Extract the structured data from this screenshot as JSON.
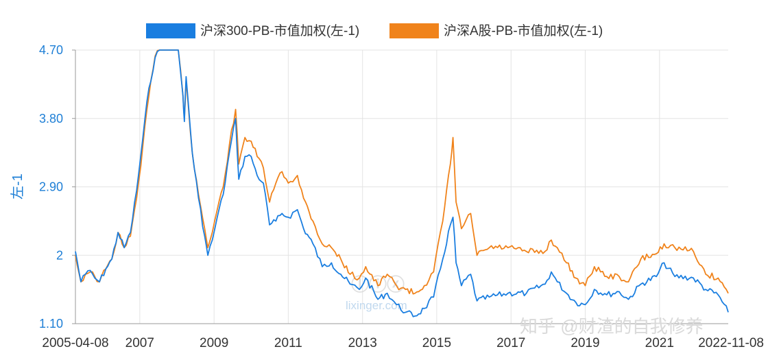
{
  "chart_data": {
    "type": "line",
    "ylabel": "左-1",
    "ylim": [
      1.1,
      4.7
    ],
    "y_ticks": [
      "4.70",
      "3.80",
      "2.90",
      "2",
      "1.10"
    ],
    "x_ticks": [
      "2005-04-08",
      "2007",
      "2009",
      "2011",
      "2013",
      "2015",
      "2017",
      "2019",
      "2021",
      "2022-11-08"
    ],
    "x_start": "2005-04-08",
    "x_end": "2022-11-08",
    "grid": true,
    "legend_position": "top",
    "series": [
      {
        "name": "沪深300-PB-市值加权(左-1)",
        "color": "#1a7ee0",
        "points": [
          [
            "2005-04-08",
            2.05
          ],
          [
            "2005-06-01",
            1.65
          ],
          [
            "2005-07-15",
            1.75
          ],
          [
            "2005-09-01",
            1.8
          ],
          [
            "2005-10-15",
            1.7
          ],
          [
            "2005-12-01",
            1.65
          ],
          [
            "2006-02-01",
            1.82
          ],
          [
            "2006-04-01",
            1.95
          ],
          [
            "2006-06-01",
            2.3
          ],
          [
            "2006-08-01",
            2.1
          ],
          [
            "2006-10-01",
            2.3
          ],
          [
            "2006-12-01",
            2.85
          ],
          [
            "2007-02-01",
            3.55
          ],
          [
            "2007-04-01",
            4.2
          ],
          [
            "2007-06-01",
            4.6
          ],
          [
            "2007-07-15",
            4.7
          ],
          [
            "2008-01-15",
            4.7
          ],
          [
            "2008-03-01",
            4.1
          ],
          [
            "2008-03-15",
            3.76
          ],
          [
            "2008-04-01",
            4.35
          ],
          [
            "2008-06-01",
            3.35
          ],
          [
            "2008-08-01",
            2.75
          ],
          [
            "2008-10-01",
            2.25
          ],
          [
            "2008-11-01",
            2.0
          ],
          [
            "2008-12-15",
            2.2
          ],
          [
            "2009-02-01",
            2.5
          ],
          [
            "2009-04-01",
            2.8
          ],
          [
            "2009-06-01",
            3.35
          ],
          [
            "2009-08-01",
            3.8
          ],
          [
            "2009-09-01",
            3.0
          ],
          [
            "2009-11-01",
            3.3
          ],
          [
            "2010-01-01",
            3.3
          ],
          [
            "2010-03-01",
            3.05
          ],
          [
            "2010-05-01",
            2.95
          ],
          [
            "2010-07-01",
            2.4
          ],
          [
            "2010-09-01",
            2.45
          ],
          [
            "2010-11-01",
            2.55
          ],
          [
            "2011-01-01",
            2.5
          ],
          [
            "2011-04-01",
            2.6
          ],
          [
            "2011-06-01",
            2.35
          ],
          [
            "2011-09-01",
            2.15
          ],
          [
            "2011-12-01",
            1.85
          ],
          [
            "2012-03-01",
            1.9
          ],
          [
            "2012-06-01",
            1.75
          ],
          [
            "2012-09-01",
            1.62
          ],
          [
            "2012-12-01",
            1.55
          ],
          [
            "2013-02-01",
            1.7
          ],
          [
            "2013-06-01",
            1.42
          ],
          [
            "2013-09-01",
            1.5
          ],
          [
            "2013-12-01",
            1.35
          ],
          [
            "2014-03-01",
            1.25
          ],
          [
            "2014-06-01",
            1.2
          ],
          [
            "2014-09-01",
            1.3
          ],
          [
            "2014-12-01",
            1.45
          ],
          [
            "2015-03-01",
            1.95
          ],
          [
            "2015-05-15",
            2.4
          ],
          [
            "2015-06-10",
            2.5
          ],
          [
            "2015-07-10",
            1.9
          ],
          [
            "2015-09-01",
            1.6
          ],
          [
            "2015-12-01",
            1.75
          ],
          [
            "2016-02-01",
            1.4
          ],
          [
            "2016-06-01",
            1.45
          ],
          [
            "2016-12-01",
            1.5
          ],
          [
            "2017-06-01",
            1.5
          ],
          [
            "2017-12-01",
            1.62
          ],
          [
            "2018-02-01",
            1.78
          ],
          [
            "2018-04-01",
            1.65
          ],
          [
            "2018-07-01",
            1.5
          ],
          [
            "2018-10-01",
            1.38
          ],
          [
            "2019-01-01",
            1.35
          ],
          [
            "2019-04-01",
            1.55
          ],
          [
            "2019-08-01",
            1.48
          ],
          [
            "2019-12-01",
            1.52
          ],
          [
            "2020-03-01",
            1.42
          ],
          [
            "2020-07-01",
            1.62
          ],
          [
            "2020-12-01",
            1.72
          ],
          [
            "2021-02-15",
            1.9
          ],
          [
            "2021-06-01",
            1.72
          ],
          [
            "2021-12-01",
            1.7
          ],
          [
            "2022-04-01",
            1.55
          ],
          [
            "2022-08-01",
            1.48
          ],
          [
            "2022-11-08",
            1.25
          ]
        ]
      },
      {
        "name": "沪深A股-PB-市值加权(左-1)",
        "color": "#f0831b",
        "points": [
          [
            "2005-04-08",
            2.0
          ],
          [
            "2005-06-01",
            1.65
          ],
          [
            "2005-07-15",
            1.75
          ],
          [
            "2005-09-01",
            1.78
          ],
          [
            "2005-10-15",
            1.72
          ],
          [
            "2005-12-01",
            1.65
          ],
          [
            "2006-02-01",
            1.82
          ],
          [
            "2006-04-01",
            1.95
          ],
          [
            "2006-06-01",
            2.3
          ],
          [
            "2006-08-01",
            2.1
          ],
          [
            "2006-10-01",
            2.25
          ],
          [
            "2006-12-01",
            2.75
          ],
          [
            "2007-02-01",
            3.45
          ],
          [
            "2007-04-01",
            4.1
          ],
          [
            "2007-06-01",
            4.62
          ],
          [
            "2007-07-15",
            4.7
          ],
          [
            "2008-01-15",
            4.7
          ],
          [
            "2008-03-01",
            4.1
          ],
          [
            "2008-03-15",
            3.8
          ],
          [
            "2008-04-01",
            4.3
          ],
          [
            "2008-06-01",
            3.35
          ],
          [
            "2008-08-01",
            2.8
          ],
          [
            "2008-10-01",
            2.35
          ],
          [
            "2008-11-01",
            2.1
          ],
          [
            "2008-12-15",
            2.3
          ],
          [
            "2009-02-01",
            2.6
          ],
          [
            "2009-04-01",
            2.9
          ],
          [
            "2009-06-01",
            3.45
          ],
          [
            "2009-08-01",
            3.92
          ],
          [
            "2009-09-01",
            3.2
          ],
          [
            "2009-11-01",
            3.55
          ],
          [
            "2010-01-01",
            3.5
          ],
          [
            "2010-03-01",
            3.3
          ],
          [
            "2010-05-01",
            3.15
          ],
          [
            "2010-07-01",
            2.7
          ],
          [
            "2010-09-01",
            2.95
          ],
          [
            "2010-11-01",
            3.1
          ],
          [
            "2011-01-01",
            2.95
          ],
          [
            "2011-04-01",
            3.05
          ],
          [
            "2011-06-01",
            2.75
          ],
          [
            "2011-09-01",
            2.45
          ],
          [
            "2011-12-01",
            2.15
          ],
          [
            "2012-03-01",
            2.1
          ],
          [
            "2012-06-01",
            1.95
          ],
          [
            "2012-09-01",
            1.75
          ],
          [
            "2012-12-01",
            1.7
          ],
          [
            "2013-02-01",
            1.85
          ],
          [
            "2013-06-01",
            1.6
          ],
          [
            "2013-09-01",
            1.75
          ],
          [
            "2013-12-01",
            1.6
          ],
          [
            "2014-03-01",
            1.55
          ],
          [
            "2014-06-01",
            1.5
          ],
          [
            "2014-09-01",
            1.6
          ],
          [
            "2014-12-01",
            1.78
          ],
          [
            "2015-03-01",
            2.45
          ],
          [
            "2015-05-15",
            3.2
          ],
          [
            "2015-06-10",
            3.55
          ],
          [
            "2015-07-10",
            2.7
          ],
          [
            "2015-09-01",
            2.35
          ],
          [
            "2015-12-01",
            2.55
          ],
          [
            "2016-02-01",
            2.0
          ],
          [
            "2016-06-01",
            2.1
          ],
          [
            "2016-12-01",
            2.1
          ],
          [
            "2017-06-01",
            2.05
          ],
          [
            "2017-12-01",
            2.05
          ],
          [
            "2018-02-01",
            2.2
          ],
          [
            "2018-04-01",
            2.1
          ],
          [
            "2018-07-01",
            1.9
          ],
          [
            "2018-10-01",
            1.7
          ],
          [
            "2019-01-01",
            1.6
          ],
          [
            "2019-04-01",
            1.85
          ],
          [
            "2019-08-01",
            1.72
          ],
          [
            "2019-12-01",
            1.72
          ],
          [
            "2020-03-01",
            1.65
          ],
          [
            "2020-07-01",
            1.95
          ],
          [
            "2020-12-01",
            2.02
          ],
          [
            "2021-02-15",
            2.15
          ],
          [
            "2021-06-01",
            2.1
          ],
          [
            "2021-12-01",
            2.05
          ],
          [
            "2022-04-01",
            1.75
          ],
          [
            "2022-08-01",
            1.7
          ],
          [
            "2022-11-08",
            1.5
          ]
        ]
      }
    ]
  },
  "watermark": {
    "text": "知乎 @财渣的自我修养",
    "logo_url_text": "lixinger.com"
  }
}
